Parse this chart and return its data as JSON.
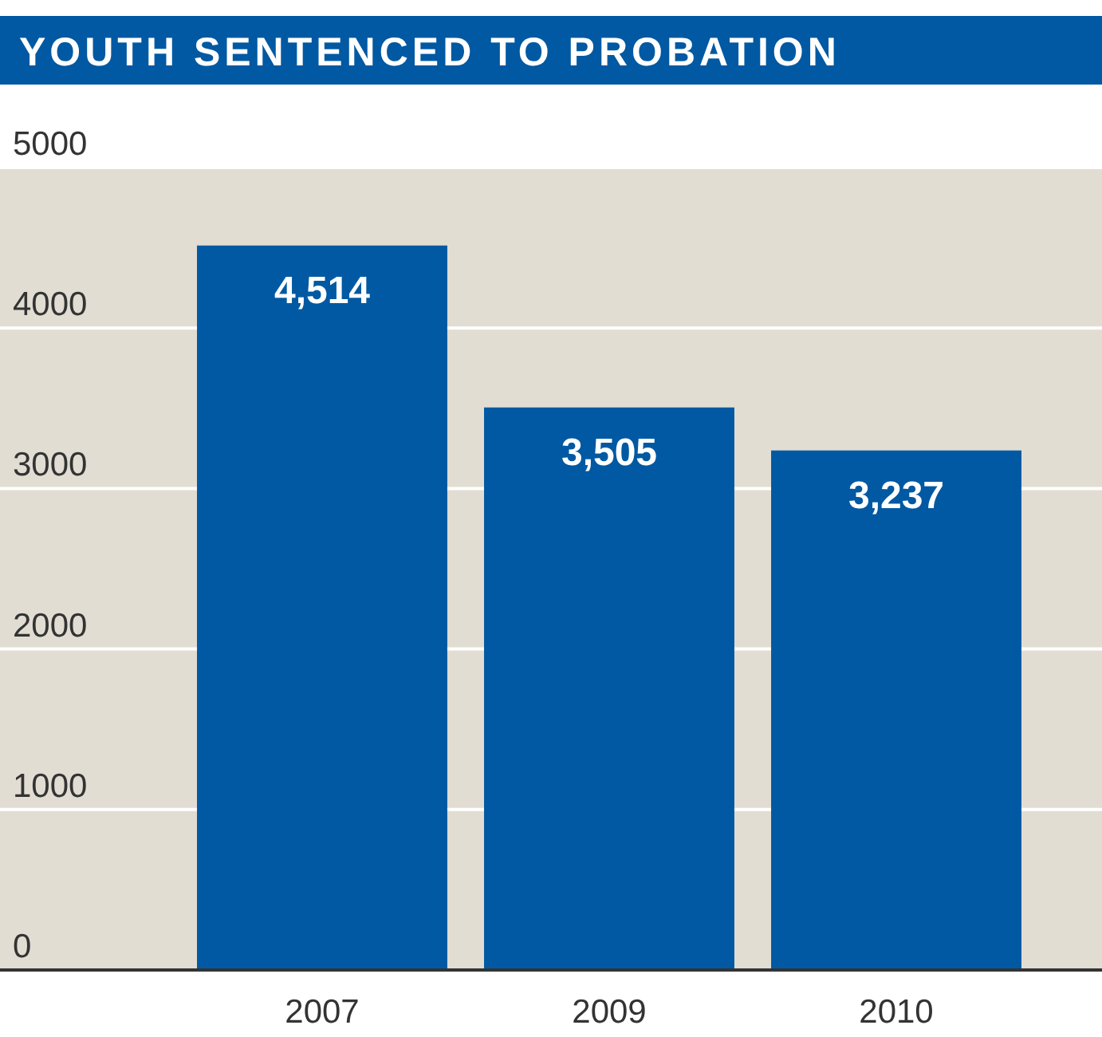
{
  "chart_data": {
    "type": "bar",
    "title": "YOUTH SENTENCED TO PROBATION",
    "categories": [
      "2007",
      "2009",
      "2010"
    ],
    "values": [
      4514,
      3505,
      3237
    ],
    "color": "#0059a2",
    "ylim": [
      0,
      5000
    ],
    "yticks": [
      0,
      1000,
      2000,
      3000,
      4000,
      5000
    ],
    "value_labels": [
      "4,514",
      "3,505",
      "3,237"
    ],
    "grid": "y"
  }
}
